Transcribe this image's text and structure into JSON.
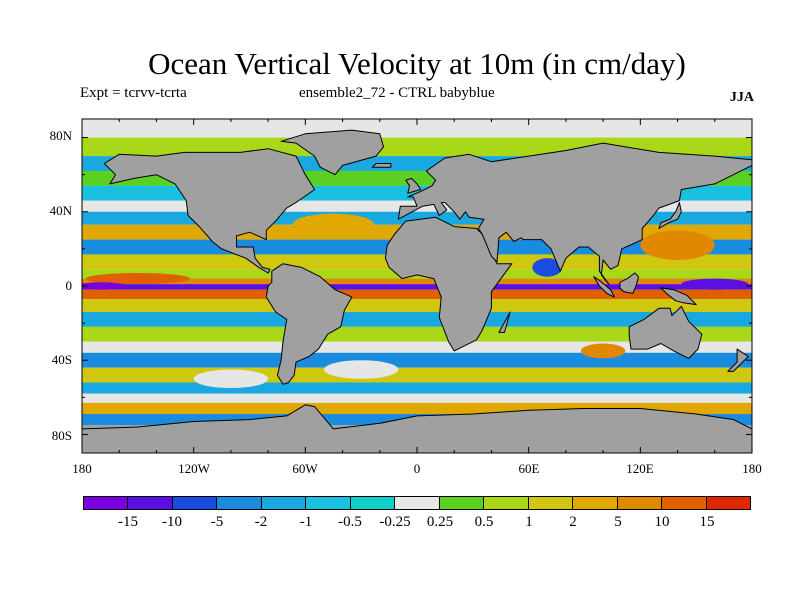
{
  "title": "Ocean Vertical Velocity at 10m (in cm/day)",
  "subtitle_left": "Expt = tcrvv-tcrta",
  "subtitle_center": "ensemble2_72 - CTRL babyblue",
  "season": "JJA",
  "y_axis": {
    "ticks": [
      "80N",
      "40N",
      "0",
      "40S",
      "80S"
    ],
    "lats": [
      80,
      40,
      0,
      -40,
      -80
    ]
  },
  "x_axis": {
    "ticks": [
      "180",
      "120W",
      "60W",
      "0",
      "60E",
      "120E",
      "180"
    ],
    "lons": [
      -180,
      -120,
      -60,
      0,
      60,
      120,
      180
    ]
  },
  "land_color": "#a0a0a0",
  "colorbar": {
    "colors": [
      "#7a00e0",
      "#5a10e0",
      "#1a4ce0",
      "#1a8ce0",
      "#1aa8e0",
      "#1ac0e0",
      "#10d0c8",
      "#e6e6e6",
      "#5ad020",
      "#a8d818",
      "#d0c810",
      "#e0a800",
      "#e08800",
      "#e06000",
      "#e02800"
    ],
    "labels": [
      "-15",
      "-10",
      "-5",
      "-2",
      "-1",
      "-0.5",
      "-0.25",
      "0.25",
      "0.5",
      "1",
      "2",
      "5",
      "10",
      "15"
    ]
  },
  "bands": [
    {
      "lat": 90,
      "color": "#e6e6e6"
    },
    {
      "lat": 80,
      "color": "#a8d818"
    },
    {
      "lat": 70,
      "color": "#1aa8e0"
    },
    {
      "lat": 62,
      "color": "#5ad020"
    },
    {
      "lat": 54,
      "color": "#1ac0e0"
    },
    {
      "lat": 46,
      "color": "#e6e6e6"
    },
    {
      "lat": 40,
      "color": "#1aa8e0"
    },
    {
      "lat": 33,
      "color": "#e0a800"
    },
    {
      "lat": 25,
      "color": "#1a8ce0"
    },
    {
      "lat": 17,
      "color": "#d0c810"
    },
    {
      "lat": 9,
      "color": "#a8d818"
    },
    {
      "lat": 4,
      "color": "#e08800"
    },
    {
      "lat": 1,
      "color": "#5a10e0"
    },
    {
      "lat": -2,
      "color": "#e06000"
    },
    {
      "lat": -7,
      "color": "#d0c810"
    },
    {
      "lat": -14,
      "color": "#1aa8e0"
    },
    {
      "lat": -22,
      "color": "#a8d818"
    },
    {
      "lat": -30,
      "color": "#e6e6e6"
    },
    {
      "lat": -36,
      "color": "#1a8ce0"
    },
    {
      "lat": -44,
      "color": "#d0c810"
    },
    {
      "lat": -52,
      "color": "#1aa8e0"
    },
    {
      "lat": -58,
      "color": "#e6e6e6"
    },
    {
      "lat": -63,
      "color": "#e0a800"
    },
    {
      "lat": -69,
      "color": "#1a8ce0"
    },
    {
      "lat": -75,
      "color": "#a0a0a0"
    }
  ],
  "patches": [
    {
      "lon": -150,
      "lat": 4,
      "rx": 28,
      "ry": 3,
      "color": "#e06000"
    },
    {
      "lon": -170,
      "lat": 0,
      "rx": 14,
      "ry": 2,
      "color": "#7a00e0"
    },
    {
      "lon": 160,
      "lat": 1,
      "rx": 18,
      "ry": 3,
      "color": "#5a10e0"
    },
    {
      "lon": 140,
      "lat": 22,
      "rx": 20,
      "ry": 8,
      "color": "#e08800"
    },
    {
      "lon": -45,
      "lat": 33,
      "rx": 22,
      "ry": 6,
      "color": "#e0a800"
    },
    {
      "lon": 70,
      "lat": 10,
      "rx": 8,
      "ry": 5,
      "color": "#1a4ce0"
    },
    {
      "lon": -30,
      "lat": -45,
      "rx": 20,
      "ry": 5,
      "color": "#e6e6e6"
    },
    {
      "lon": 100,
      "lat": -35,
      "rx": 12,
      "ry": 4,
      "color": "#e08800"
    },
    {
      "lon": -100,
      "lat": -50,
      "rx": 20,
      "ry": 5,
      "color": "#e6e6e6"
    }
  ],
  "land": [
    {
      "name": "north-america",
      "pts": [
        [
          -168,
          66
        ],
        [
          -160,
          71
        ],
        [
          -140,
          70
        ],
        [
          -125,
          72
        ],
        [
          -95,
          72
        ],
        [
          -80,
          74
        ],
        [
          -65,
          70
        ],
        [
          -60,
          60
        ],
        [
          -55,
          52
        ],
        [
          -65,
          45
        ],
        [
          -70,
          42
        ],
        [
          -76,
          35
        ],
        [
          -81,
          30
        ],
        [
          -81,
          25
        ],
        [
          -90,
          29
        ],
        [
          -97,
          27
        ],
        [
          -97,
          21
        ],
        [
          -88,
          21
        ],
        [
          -87,
          15
        ],
        [
          -83,
          10
        ],
        [
          -79,
          9
        ],
        [
          -80,
          7
        ],
        [
          -85,
          10
        ],
        [
          -92,
          15
        ],
        [
          -105,
          20
        ],
        [
          -110,
          24
        ],
        [
          -117,
          32
        ],
        [
          -123,
          38
        ],
        [
          -124,
          46
        ],
        [
          -130,
          55
        ],
        [
          -140,
          60
        ],
        [
          -152,
          58
        ],
        [
          -165,
          55
        ],
        [
          -162,
          60
        ]
      ]
    },
    {
      "name": "greenland",
      "pts": [
        [
          -73,
          78
        ],
        [
          -60,
          82
        ],
        [
          -35,
          84
        ],
        [
          -20,
          82
        ],
        [
          -18,
          75
        ],
        [
          -22,
          70
        ],
        [
          -40,
          65
        ],
        [
          -44,
          60
        ],
        [
          -52,
          64
        ],
        [
          -55,
          70
        ],
        [
          -65,
          77
        ]
      ]
    },
    {
      "name": "south-america",
      "pts": [
        [
          -78,
          8
        ],
        [
          -72,
          12
        ],
        [
          -62,
          10
        ],
        [
          -52,
          5
        ],
        [
          -44,
          -2
        ],
        [
          -35,
          -6
        ],
        [
          -39,
          -13
        ],
        [
          -41,
          -22
        ],
        [
          -48,
          -26
        ],
        [
          -53,
          -34
        ],
        [
          -58,
          -38
        ],
        [
          -65,
          -41
        ],
        [
          -66,
          -48
        ],
        [
          -69,
          -52
        ],
        [
          -72,
          -53
        ],
        [
          -75,
          -48
        ],
        [
          -73,
          -40
        ],
        [
          -72,
          -30
        ],
        [
          -70,
          -18
        ],
        [
          -76,
          -14
        ],
        [
          -81,
          -6
        ],
        [
          -80,
          0
        ],
        [
          -78,
          2
        ]
      ]
    },
    {
      "name": "africa",
      "pts": [
        [
          -17,
          15
        ],
        [
          -16,
          22
        ],
        [
          -12,
          28
        ],
        [
          -6,
          35
        ],
        [
          10,
          37
        ],
        [
          20,
          32
        ],
        [
          32,
          31
        ],
        [
          35,
          28
        ],
        [
          43,
          12
        ],
        [
          51,
          12
        ],
        [
          40,
          -3
        ],
        [
          40,
          -12
        ],
        [
          35,
          -24
        ],
        [
          32,
          -29
        ],
        [
          20,
          -35
        ],
        [
          17,
          -30
        ],
        [
          12,
          -17
        ],
        [
          13,
          -6
        ],
        [
          9,
          4
        ],
        [
          0,
          6
        ],
        [
          -8,
          4
        ],
        [
          -15,
          10
        ]
      ]
    },
    {
      "name": "eurasia",
      "pts": [
        [
          -10,
          36
        ],
        [
          -9,
          43
        ],
        [
          0,
          43
        ],
        [
          -2,
          48
        ],
        [
          -5,
          48
        ],
        [
          2,
          51
        ],
        [
          8,
          54
        ],
        [
          10,
          57
        ],
        [
          5,
          62
        ],
        [
          15,
          69
        ],
        [
          28,
          71
        ],
        [
          40,
          67
        ],
        [
          60,
          70
        ],
        [
          80,
          73
        ],
        [
          100,
          77
        ],
        [
          130,
          72
        ],
        [
          160,
          70
        ],
        [
          180,
          68
        ],
        [
          180,
          65
        ],
        [
          170,
          60
        ],
        [
          160,
          55
        ],
        [
          142,
          52
        ],
        [
          141,
          46
        ],
        [
          130,
          42
        ],
        [
          127,
          38
        ],
        [
          121,
          31
        ],
        [
          121,
          25
        ],
        [
          110,
          20
        ],
        [
          108,
          11
        ],
        [
          104,
          9
        ],
        [
          100,
          14
        ],
        [
          99,
          6
        ],
        [
          103,
          1
        ],
        [
          98,
          8
        ],
        [
          98,
          16
        ],
        [
          92,
          21
        ],
        [
          87,
          21
        ],
        [
          80,
          15
        ],
        [
          77,
          8
        ],
        [
          72,
          20
        ],
        [
          67,
          25
        ],
        [
          57,
          25
        ],
        [
          56,
          26
        ],
        [
          52,
          24
        ],
        [
          48,
          29
        ],
        [
          44,
          26
        ],
        [
          43,
          13
        ],
        [
          40,
          16
        ],
        [
          35,
          28
        ],
        [
          33,
          31
        ],
        [
          36,
          36
        ],
        [
          28,
          37
        ],
        [
          26,
          40
        ],
        [
          23,
          36
        ],
        [
          20,
          40
        ],
        [
          15,
          45
        ],
        [
          13,
          45
        ],
        [
          16,
          41
        ],
        [
          12,
          38
        ],
        [
          9,
          44
        ],
        [
          3,
          43
        ]
      ]
    },
    {
      "name": "australia",
      "pts": [
        [
          114,
          -22
        ],
        [
          122,
          -18
        ],
        [
          130,
          -12
        ],
        [
          136,
          -12
        ],
        [
          137,
          -16
        ],
        [
          142,
          -11
        ],
        [
          146,
          -19
        ],
        [
          153,
          -26
        ],
        [
          151,
          -34
        ],
        [
          146,
          -39
        ],
        [
          138,
          -35
        ],
        [
          131,
          -31
        ],
        [
          124,
          -34
        ],
        [
          115,
          -34
        ],
        [
          114,
          -27
        ]
      ]
    },
    {
      "name": "antarctica",
      "pts": [
        [
          -180,
          -90
        ],
        [
          -180,
          -77
        ],
        [
          -150,
          -76
        ],
        [
          -120,
          -73
        ],
        [
          -90,
          -72
        ],
        [
          -70,
          -70
        ],
        [
          -60,
          -64
        ],
        [
          -55,
          -65
        ],
        [
          -45,
          -77
        ],
        [
          -20,
          -74
        ],
        [
          0,
          -70
        ],
        [
          30,
          -69
        ],
        [
          60,
          -67
        ],
        [
          90,
          -66
        ],
        [
          120,
          -66
        ],
        [
          150,
          -69
        ],
        [
          170,
          -72
        ],
        [
          180,
          -77
        ],
        [
          180,
          -90
        ]
      ]
    },
    {
      "name": "borneo",
      "pts": [
        [
          109,
          2
        ],
        [
          113,
          4
        ],
        [
          117,
          7
        ],
        [
          119,
          5
        ],
        [
          118,
          1
        ],
        [
          116,
          -4
        ],
        [
          111,
          -3
        ],
        [
          109,
          -1
        ]
      ]
    },
    {
      "name": "sumatra",
      "pts": [
        [
          95,
          5
        ],
        [
          98,
          3
        ],
        [
          104,
          -2
        ],
        [
          106,
          -6
        ],
        [
          102,
          -4
        ],
        [
          98,
          0
        ]
      ]
    },
    {
      "name": "new-guinea",
      "pts": [
        [
          131,
          -1
        ],
        [
          138,
          -2
        ],
        [
          145,
          -5
        ],
        [
          150,
          -10
        ],
        [
          143,
          -9
        ],
        [
          139,
          -8
        ],
        [
          134,
          -4
        ]
      ]
    },
    {
      "name": "japan",
      "pts": [
        [
          130,
          31
        ],
        [
          135,
          34
        ],
        [
          140,
          36
        ],
        [
          142,
          40
        ],
        [
          141,
          45
        ],
        [
          139,
          40
        ],
        [
          136,
          36
        ],
        [
          131,
          34
        ]
      ]
    },
    {
      "name": "madagascar",
      "pts": [
        [
          44,
          -25
        ],
        [
          49,
          -16
        ],
        [
          50,
          -14
        ],
        [
          47,
          -25
        ]
      ]
    },
    {
      "name": "great-britain",
      "pts": [
        [
          -5,
          50
        ],
        [
          2,
          52
        ],
        [
          0,
          55
        ],
        [
          -3,
          58
        ],
        [
          -6,
          57
        ],
        [
          -4,
          54
        ]
      ]
    },
    {
      "name": "new-zealand",
      "pts": [
        [
          172,
          -34
        ],
        [
          178,
          -38
        ],
        [
          174,
          -42
        ],
        [
          170,
          -46
        ],
        [
          167,
          -46
        ],
        [
          172,
          -41
        ]
      ]
    },
    {
      "name": "iceland",
      "pts": [
        [
          -24,
          64
        ],
        [
          -14,
          64
        ],
        [
          -14,
          66
        ],
        [
          -22,
          66
        ]
      ]
    }
  ]
}
